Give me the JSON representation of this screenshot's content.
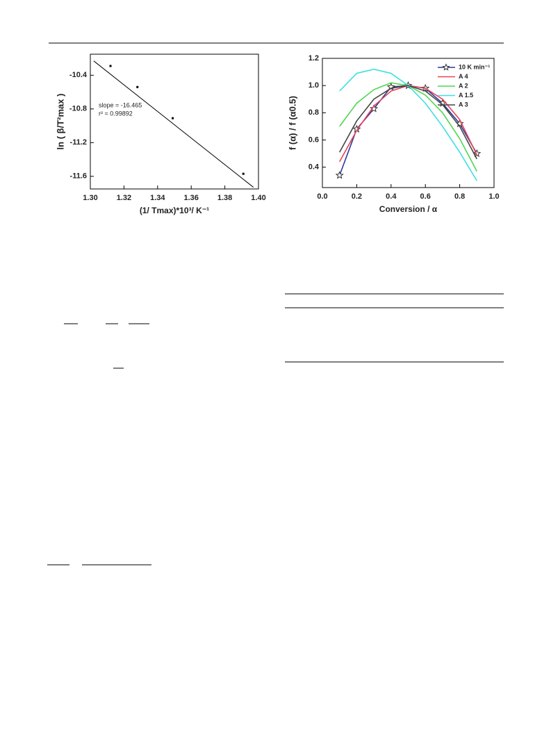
{
  "chart_data": [
    {
      "type": "scatter",
      "y_label": "ln ( β/T²max )",
      "x_label": "(1/ Tmax)*10³/ K⁻¹",
      "annotations": [
        "slope = -16.465",
        "r² = 0.99892"
      ],
      "x": [
        1.312,
        1.328,
        1.349,
        1.391
      ],
      "values": [
        -10.29,
        -10.54,
        -10.91,
        -11.57
      ],
      "fit": {
        "x": [
          1.302,
          1.397
        ],
        "values": [
          -10.23,
          -11.73
        ]
      },
      "color": "#000000",
      "xlim": [
        1.3,
        1.4
      ],
      "xticks": [
        {
          "value": 1.3,
          "label": "1.30"
        },
        {
          "value": 1.32,
          "label": "1.32"
        },
        {
          "value": 1.34,
          "label": "1.34"
        },
        {
          "value": 1.36,
          "label": "1.36"
        },
        {
          "value": 1.38,
          "label": "1.38"
        },
        {
          "value": 1.4,
          "label": "1.40"
        }
      ],
      "ylim": [
        -11.75,
        -10.15
      ],
      "yticks": [
        -10.4,
        -10.8,
        -11.2,
        -11.6
      ]
    },
    {
      "type": "line",
      "y_label": "f (α) / f (α0.5)",
      "x_label": "Conversion / α",
      "x": [
        0.1,
        0.2,
        0.3,
        0.4,
        0.5,
        0.6,
        0.7,
        0.8,
        0.9
      ],
      "series": [
        {
          "name": "10 K min⁻¹",
          "color": "#2b3a9a",
          "marker": "star",
          "values": [
            0.34,
            0.68,
            0.83,
            0.99,
            1.0,
            0.98,
            0.87,
            0.72,
            0.5
          ]
        },
        {
          "name": "A 4",
          "color": "#e8425a",
          "values": [
            0.44,
            0.67,
            0.85,
            0.96,
            1.0,
            0.98,
            0.9,
            0.75,
            0.49
          ]
        },
        {
          "name": "A 2",
          "color": "#4fd64f",
          "values": [
            0.7,
            0.87,
            0.97,
            1.02,
            1.0,
            0.93,
            0.8,
            0.61,
            0.37
          ]
        },
        {
          "name": "A 1.5",
          "color": "#3fe0e0",
          "values": [
            0.96,
            1.09,
            1.12,
            1.09,
            1.0,
            0.87,
            0.7,
            0.51,
            0.3
          ]
        },
        {
          "name": "A 3",
          "color": "#444444",
          "values": [
            0.51,
            0.74,
            0.9,
            0.98,
            1.0,
            0.96,
            0.86,
            0.7,
            0.46
          ]
        }
      ],
      "xlim": [
        0,
        1
      ],
      "xticks": [
        {
          "value": 0,
          "label": "0.0"
        },
        0.2,
        0.4,
        0.6,
        0.8,
        {
          "value": 1,
          "label": "1.0"
        }
      ],
      "ylim": [
        0.25,
        1.2
      ],
      "yticks": [
        0.4,
        0.6,
        0.8,
        {
          "value": 1,
          "label": "1.0"
        },
        1.2
      ],
      "legend": "upper right"
    }
  ]
}
